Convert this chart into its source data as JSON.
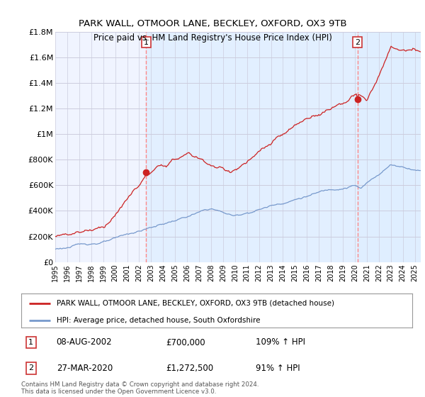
{
  "title": "PARK WALL, OTMOOR LANE, BECKLEY, OXFORD, OX3 9TB",
  "subtitle": "Price paid vs. HM Land Registry's House Price Index (HPI)",
  "ylim": [
    0,
    1800000
  ],
  "yticks": [
    0,
    200000,
    400000,
    600000,
    800000,
    1000000,
    1200000,
    1400000,
    1600000,
    1800000
  ],
  "ytick_labels": [
    "£0",
    "£200K",
    "£400K",
    "£600K",
    "£800K",
    "£1M",
    "£1.2M",
    "£1.4M",
    "£1.6M",
    "£1.8M"
  ],
  "xlim_start": 1995.0,
  "xlim_end": 2025.5,
  "sale1_x": 2002.58,
  "sale1_y": 700000,
  "sale2_x": 2020.22,
  "sale2_y": 1272500,
  "sale1_date": "08-AUG-2002",
  "sale1_price": "£700,000",
  "sale1_hpi": "109% ↑ HPI",
  "sale2_date": "27-MAR-2020",
  "sale2_price": "£1,272,500",
  "sale2_hpi": "91% ↑ HPI",
  "line_property_color": "#cc2222",
  "line_hpi_color": "#7799cc",
  "shade_color": "#ddeeff",
  "legend_property": "PARK WALL, OTMOOR LANE, BECKLEY, OXFORD, OX3 9TB (detached house)",
  "legend_hpi": "HPI: Average price, detached house, South Oxfordshire",
  "footnote": "Contains HM Land Registry data © Crown copyright and database right 2024.\nThis data is licensed under the Open Government Licence v3.0.",
  "background_color": "#ffffff",
  "plot_bg_color": "#f0f4ff",
  "grid_color": "#ccccdd"
}
